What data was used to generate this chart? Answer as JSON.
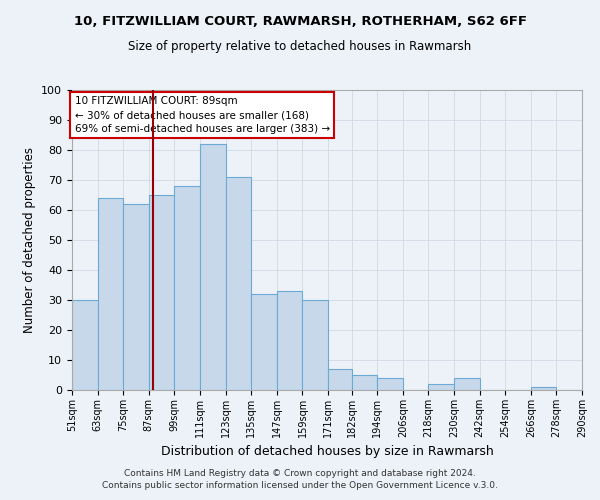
{
  "title1": "10, FITZWILLIAM COURT, RAWMARSH, ROTHERHAM, S62 6FF",
  "title2": "Size of property relative to detached houses in Rawmarsh",
  "xlabel": "Distribution of detached houses by size in Rawmarsh",
  "ylabel": "Number of detached properties",
  "bin_edges": [
    51,
    63,
    75,
    87,
    99,
    111,
    123,
    135,
    147,
    159,
    171,
    182,
    194,
    206,
    218,
    230,
    242,
    254,
    266,
    278,
    290
  ],
  "bin_heights": [
    30,
    64,
    62,
    65,
    68,
    82,
    71,
    32,
    33,
    30,
    7,
    5,
    4,
    0,
    2,
    4,
    0,
    0,
    1,
    0
  ],
  "bar_facecolor": "#c8d8eb",
  "bar_edgecolor": "#6aaad4",
  "property_line_x": 89,
  "property_line_color": "#990000",
  "annotation_line1": "10 FITZWILLIAM COURT: 89sqm",
  "annotation_line2": "← 30% of detached houses are smaller (168)",
  "annotation_line3": "69% of semi-detached houses are larger (383) →",
  "annotation_box_facecolor": "white",
  "annotation_box_edgecolor": "#cc0000",
  "grid_color": "#d0d8e4",
  "background_color": "#edf2f8",
  "plot_bg_color": "#edf2f8",
  "ylim": [
    0,
    100
  ],
  "yticks": [
    0,
    10,
    20,
    30,
    40,
    50,
    60,
    70,
    80,
    90,
    100
  ],
  "tick_labels": [
    "51sqm",
    "63sqm",
    "75sqm",
    "87sqm",
    "99sqm",
    "111sqm",
    "123sqm",
    "135sqm",
    "147sqm",
    "159sqm",
    "171sqm",
    "182sqm",
    "194sqm",
    "206sqm",
    "218sqm",
    "230sqm",
    "242sqm",
    "254sqm",
    "266sqm",
    "278sqm",
    "290sqm"
  ],
  "footer1": "Contains HM Land Registry data © Crown copyright and database right 2024.",
  "footer2": "Contains public sector information licensed under the Open Government Licence v.3.0."
}
